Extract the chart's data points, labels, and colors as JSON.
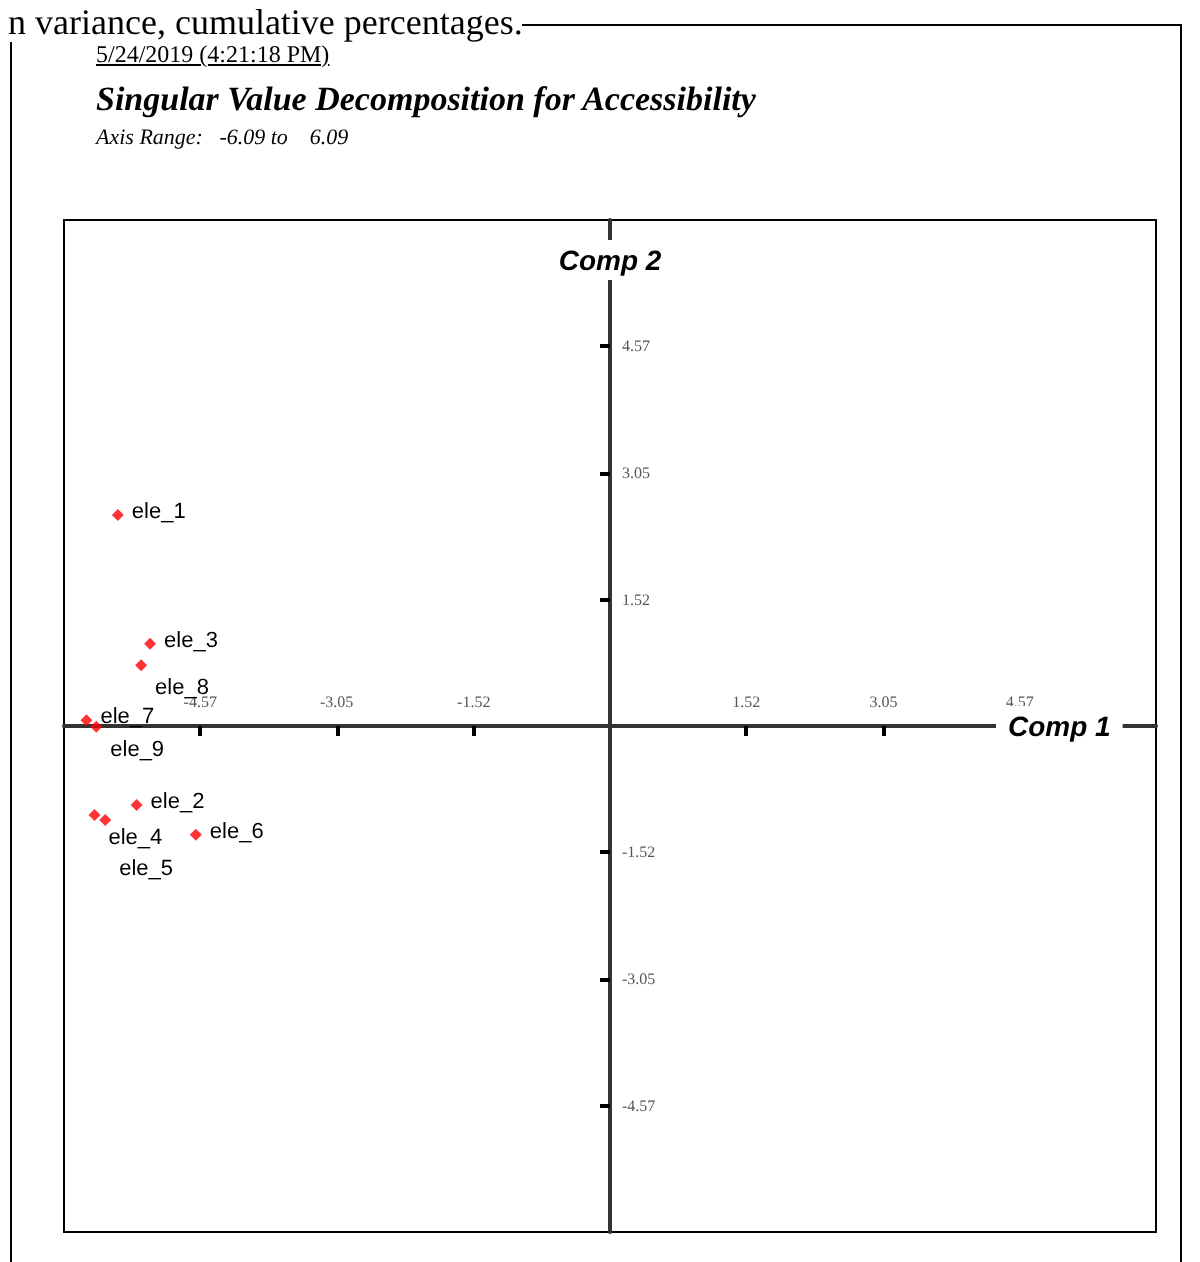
{
  "chart_data": {
    "type": "scatter",
    "title": "Singular Value Decomposition for Accessibility",
    "subtitle": "Axis Range:   -6.09 to    6.09",
    "xlabel": "Comp 1",
    "ylabel": "Comp 2",
    "annotations": [
      "n variance, cumulative percentages.",
      "5/24/2019 (4:21:18 PM)",
      {
        "text": "ele_1",
        "x": -5.49,
        "y": 2.54
      },
      {
        "text": "ele_3",
        "x": -5.13,
        "y": 0.99
      },
      {
        "text": "ele_8",
        "x": -5.23,
        "y": 0.73
      },
      {
        "text": "ele_7",
        "x": -5.84,
        "y": 0.07
      },
      {
        "text": "ele_9",
        "x": -5.73,
        "y": -0.01
      },
      {
        "text": "ele_2",
        "x": -5.28,
        "y": -0.95
      },
      {
        "text": "ele_4",
        "x": -5.75,
        "y": -1.07
      },
      {
        "text": "ele_5",
        "x": -5.63,
        "y": -1.13
      },
      {
        "text": "ele_6",
        "x": -4.62,
        "y": -1.31
      }
    ],
    "x": [
      -5.49,
      -5.13,
      -5.23,
      -5.84,
      -5.73,
      -5.28,
      -5.75,
      -5.63,
      -4.62
    ],
    "values": [
      2.54,
      0.99,
      0.73,
      0.07,
      -0.01,
      -0.95,
      -1.07,
      -1.13,
      -1.31
    ],
    "color": "#ff0000",
    "marker": "diamond",
    "grid": false,
    "xlim": [
      -6.09,
      6.09
    ],
    "ylim": [
      -6.09,
      6.09
    ],
    "xticks": [
      -4.57,
      -3.05,
      -1.52,
      1.52,
      3.05,
      4.57
    ],
    "yticks": [
      -4.57,
      -3.05,
      -1.52,
      1.52,
      3.05,
      4.57
    ]
  }
}
